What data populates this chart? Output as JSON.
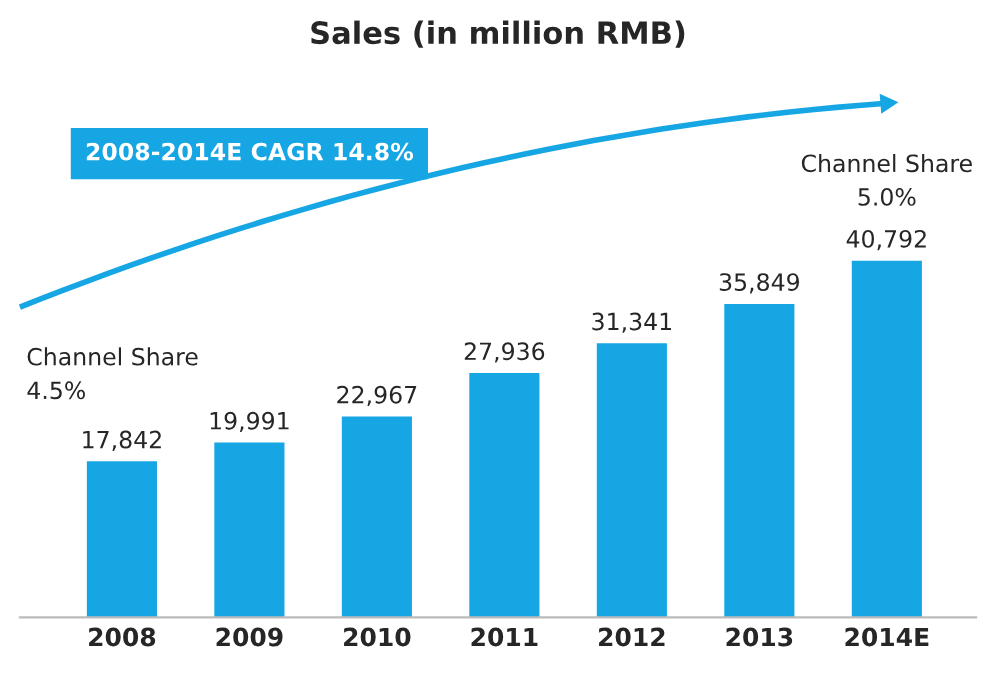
{
  "chart_data": {
    "type": "bar",
    "title": "Sales (in million RMB)",
    "categories": [
      "2008",
      "2009",
      "2010",
      "2011",
      "2012",
      "2013",
      "2014E"
    ],
    "values": [
      17842,
      19991,
      22967,
      27936,
      31341,
      35849,
      40792
    ],
    "value_labels": [
      "17,842",
      "19,991",
      "22,967",
      "27,936",
      "31,341",
      "35,849",
      "40,792"
    ],
    "color": "#16a6e4",
    "annotations": [
      "2008-2014E CAGR 14.8%",
      "Channel Share\n4.5%",
      "Channel Share\n5.0%"
    ],
    "tick_labels": "x",
    "grid": false
  }
}
